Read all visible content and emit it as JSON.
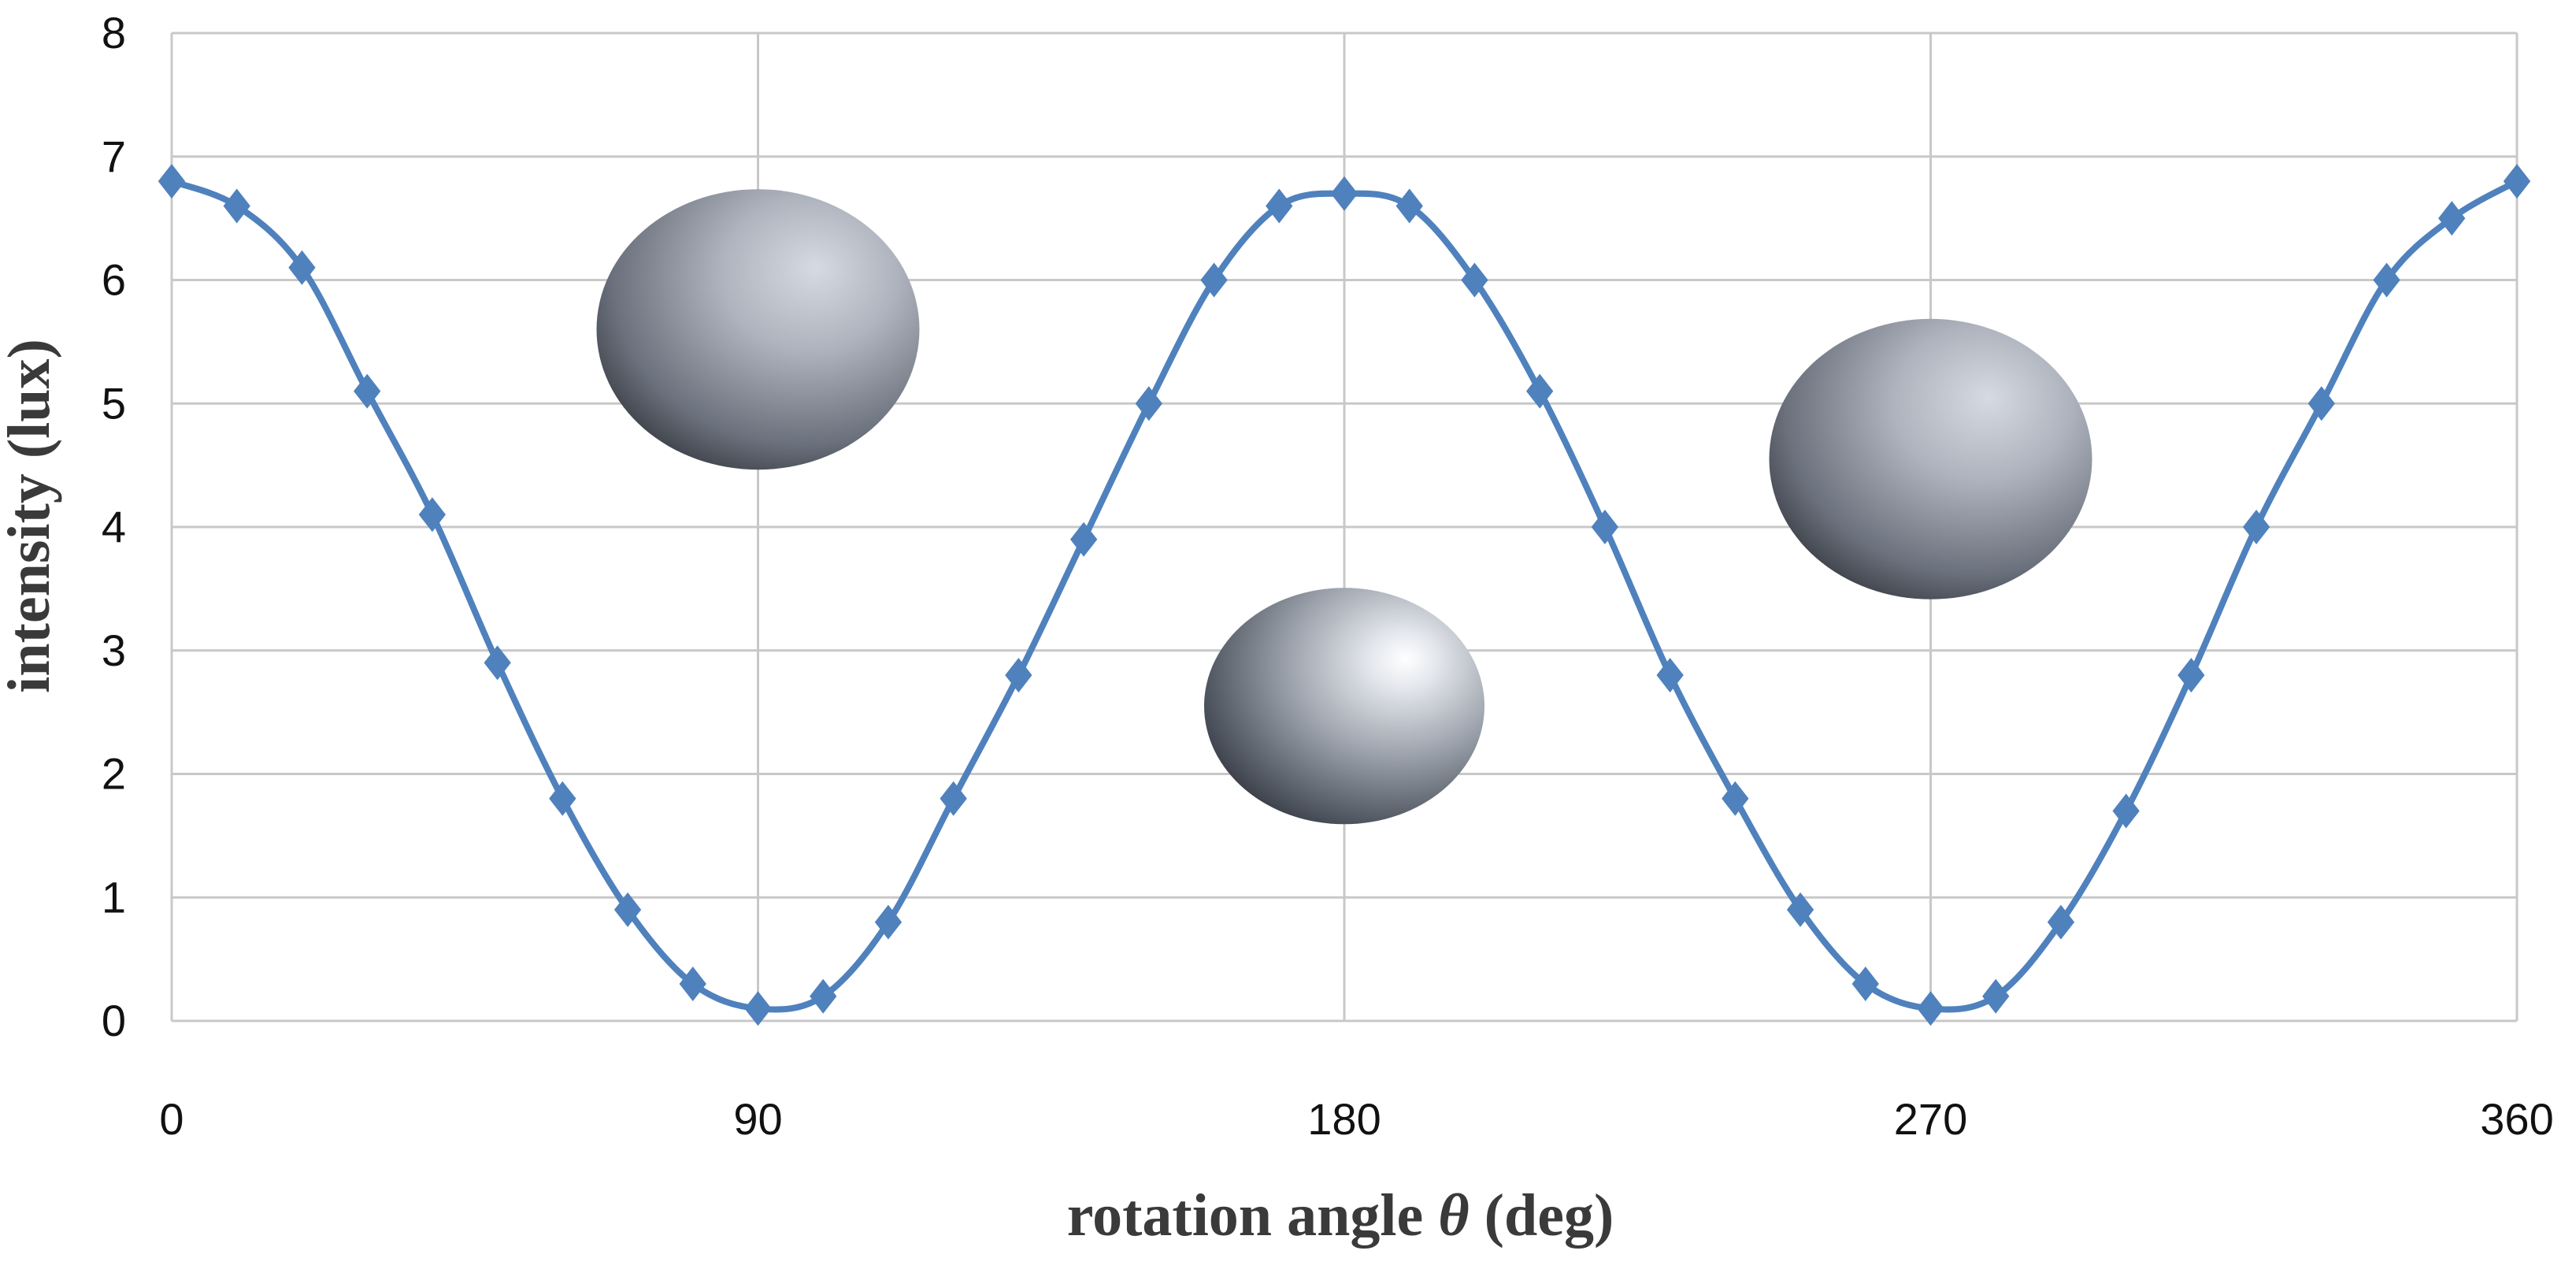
{
  "chart_data": {
    "type": "line",
    "title": "",
    "xlabel_text": "rotation angle",
    "xlabel_symbol": "θ",
    "xlabel_unit": "(deg)",
    "ylabel": "intensity (lux)",
    "xlim": [
      0,
      360
    ],
    "ylim": [
      0,
      8
    ],
    "x_ticks": [
      0,
      90,
      180,
      270,
      360
    ],
    "y_ticks": [
      0,
      1,
      2,
      3,
      4,
      5,
      6,
      7,
      8
    ],
    "grid": true,
    "legend": "none",
    "series": [
      {
        "name": "intensity",
        "color": "#4F81BD",
        "marker": "diamond",
        "x": [
          0,
          10,
          20,
          30,
          40,
          50,
          60,
          70,
          80,
          90,
          100,
          110,
          120,
          130,
          140,
          150,
          160,
          170,
          180,
          190,
          200,
          210,
          220,
          230,
          240,
          250,
          260,
          270,
          280,
          290,
          300,
          310,
          320,
          330,
          340,
          350,
          360
        ],
        "y": [
          6.8,
          6.6,
          6.1,
          5.1,
          4.1,
          2.9,
          1.8,
          0.9,
          0.3,
          0.1,
          0.2,
          0.8,
          1.8,
          2.8,
          3.9,
          5.0,
          6.0,
          6.6,
          6.7,
          6.6,
          6.0,
          5.1,
          4.0,
          2.8,
          1.8,
          0.9,
          0.3,
          0.1,
          0.2,
          0.8,
          1.7,
          2.8,
          4.0,
          5.0,
          6.0,
          6.5,
          6.8
        ]
      }
    ],
    "insets": [
      {
        "name": "particle-shape-horizontal",
        "x_center": 90,
        "y_center": 5.6,
        "shape": "wide-ellipsoid"
      },
      {
        "name": "particle-shape-sphere",
        "x_center": 180,
        "y_center": 2.55,
        "shape": "sphere"
      },
      {
        "name": "particle-shape-vertical",
        "x_center": 270,
        "y_center": 4.55,
        "shape": "wide-ellipsoid"
      }
    ]
  }
}
